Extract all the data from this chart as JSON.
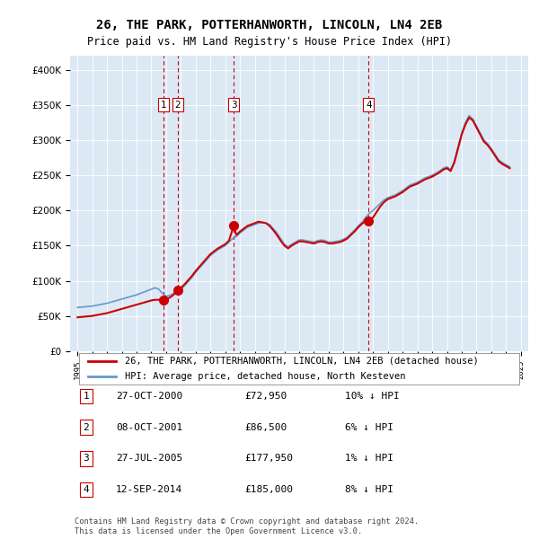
{
  "title": "26, THE PARK, POTTERHANWORTH, LINCOLN, LN4 2EB",
  "subtitle": "Price paid vs. HM Land Registry's House Price Index (HPI)",
  "legend_line1": "26, THE PARK, POTTERHANWORTH, LINCOLN, LN4 2EB (detached house)",
  "legend_line2": "HPI: Average price, detached house, North Kesteven",
  "footnote": "Contains HM Land Registry data © Crown copyright and database right 2024.\nThis data is licensed under the Open Government Licence v3.0.",
  "table": [
    [
      "1",
      "27-OCT-2000",
      "£72,950",
      "10% ↓ HPI"
    ],
    [
      "2",
      "08-OCT-2001",
      "£86,500",
      "6% ↓ HPI"
    ],
    [
      "3",
      "27-JUL-2005",
      "£177,950",
      "1% ↓ HPI"
    ],
    [
      "4",
      "12-SEP-2014",
      "£185,000",
      "8% ↓ HPI"
    ]
  ],
  "sale_dates": [
    2000.82,
    2001.77,
    2005.57,
    2014.7
  ],
  "sale_prices": [
    72950,
    86500,
    177950,
    185000
  ],
  "sale_labels": [
    "1",
    "2",
    "3",
    "4"
  ],
  "vline_dates": [
    2000.82,
    2001.77,
    2005.57,
    2014.7
  ],
  "hpi_color": "#6699cc",
  "price_color": "#cc0000",
  "background_color": "#dce9f5",
  "ylim": [
    0,
    420000
  ],
  "yticks": [
    0,
    50000,
    100000,
    150000,
    200000,
    250000,
    300000,
    350000,
    400000
  ],
  "xlim": [
    1994.5,
    2025.5
  ],
  "xticks": [
    1995,
    1996,
    1997,
    1998,
    1999,
    2000,
    2001,
    2002,
    2003,
    2004,
    2005,
    2006,
    2007,
    2008,
    2009,
    2010,
    2011,
    2012,
    2013,
    2014,
    2015,
    2016,
    2017,
    2018,
    2019,
    2020,
    2021,
    2022,
    2023,
    2024,
    2025
  ],
  "hpi_x": [
    1995.0,
    1995.25,
    1995.5,
    1995.75,
    1996.0,
    1996.25,
    1996.5,
    1996.75,
    1997.0,
    1997.25,
    1997.5,
    1997.75,
    1998.0,
    1998.25,
    1998.5,
    1998.75,
    1999.0,
    1999.25,
    1999.5,
    1999.75,
    2000.0,
    2000.25,
    2000.5,
    2000.75,
    2001.0,
    2001.25,
    2001.5,
    2001.75,
    2002.0,
    2002.25,
    2002.5,
    2002.75,
    2003.0,
    2003.25,
    2003.5,
    2003.75,
    2004.0,
    2004.25,
    2004.5,
    2004.75,
    2005.0,
    2005.25,
    2005.5,
    2005.75,
    2006.0,
    2006.25,
    2006.5,
    2006.75,
    2007.0,
    2007.25,
    2007.5,
    2007.75,
    2008.0,
    2008.25,
    2008.5,
    2008.75,
    2009.0,
    2009.25,
    2009.5,
    2009.75,
    2010.0,
    2010.25,
    2010.5,
    2010.75,
    2011.0,
    2011.25,
    2011.5,
    2011.75,
    2012.0,
    2012.25,
    2012.5,
    2012.75,
    2013.0,
    2013.25,
    2013.5,
    2013.75,
    2014.0,
    2014.25,
    2014.5,
    2014.75,
    2015.0,
    2015.25,
    2015.5,
    2015.75,
    2016.0,
    2016.25,
    2016.5,
    2016.75,
    2017.0,
    2017.25,
    2017.5,
    2017.75,
    2018.0,
    2018.25,
    2018.5,
    2018.75,
    2019.0,
    2019.25,
    2019.5,
    2019.75,
    2020.0,
    2020.25,
    2020.5,
    2020.75,
    2021.0,
    2021.25,
    2021.5,
    2021.75,
    2022.0,
    2022.25,
    2022.5,
    2022.75,
    2023.0,
    2023.25,
    2023.5,
    2023.75,
    2024.0,
    2024.25
  ],
  "hpi_y": [
    62000,
    62500,
    63000,
    63500,
    64000,
    65000,
    66000,
    67000,
    68000,
    69500,
    71000,
    72500,
    74000,
    75500,
    77000,
    78500,
    80000,
    82000,
    84000,
    86000,
    88000,
    90000,
    88000,
    82000,
    78000,
    79000,
    82000,
    84000,
    88000,
    93000,
    99000,
    105000,
    112000,
    118000,
    124000,
    130000,
    136000,
    140000,
    144000,
    147000,
    150000,
    155000,
    160000,
    163000,
    168000,
    172000,
    176000,
    178000,
    180000,
    182000,
    183000,
    182000,
    180000,
    174000,
    168000,
    160000,
    152000,
    148000,
    152000,
    155000,
    158000,
    158000,
    157000,
    156000,
    155000,
    157000,
    158000,
    157000,
    155000,
    155000,
    156000,
    157000,
    159000,
    162000,
    167000,
    172000,
    178000,
    183000,
    190000,
    196000,
    200000,
    205000,
    210000,
    215000,
    218000,
    220000,
    222000,
    225000,
    228000,
    232000,
    236000,
    238000,
    240000,
    243000,
    246000,
    248000,
    250000,
    253000,
    256000,
    260000,
    262000,
    258000,
    270000,
    290000,
    310000,
    325000,
    335000,
    330000,
    320000,
    310000,
    300000,
    295000,
    288000,
    280000,
    272000,
    268000,
    265000,
    262000
  ],
  "price_x": [
    1995.0,
    1995.25,
    1995.5,
    1995.75,
    1996.0,
    1996.25,
    1996.5,
    1996.75,
    1997.0,
    1997.25,
    1997.5,
    1997.75,
    1998.0,
    1998.25,
    1998.5,
    1998.75,
    1999.0,
    1999.25,
    1999.5,
    1999.75,
    2000.0,
    2000.25,
    2000.5,
    2000.82,
    2001.0,
    2001.25,
    2001.5,
    2001.77,
    2002.0,
    2002.25,
    2002.5,
    2002.75,
    2003.0,
    2003.25,
    2003.5,
    2003.75,
    2004.0,
    2004.25,
    2004.5,
    2004.75,
    2005.0,
    2005.25,
    2005.57,
    2005.75,
    2006.0,
    2006.25,
    2006.5,
    2006.75,
    2007.0,
    2007.25,
    2007.5,
    2007.75,
    2008.0,
    2008.25,
    2008.5,
    2008.75,
    2009.0,
    2009.25,
    2009.5,
    2009.75,
    2010.0,
    2010.25,
    2010.5,
    2010.75,
    2011.0,
    2011.25,
    2011.5,
    2011.75,
    2012.0,
    2012.25,
    2012.5,
    2012.75,
    2013.0,
    2013.25,
    2013.5,
    2013.75,
    2014.0,
    2014.25,
    2014.5,
    2014.7,
    2015.0,
    2015.25,
    2015.5,
    2015.75,
    2016.0,
    2016.25,
    2016.5,
    2016.75,
    2017.0,
    2017.25,
    2017.5,
    2017.75,
    2018.0,
    2018.25,
    2018.5,
    2018.75,
    2019.0,
    2019.25,
    2019.5,
    2019.75,
    2020.0,
    2020.25,
    2020.5,
    2020.75,
    2021.0,
    2021.25,
    2021.5,
    2021.75,
    2022.0,
    2022.25,
    2022.5,
    2022.75,
    2023.0,
    2023.25,
    2023.5,
    2023.75,
    2024.0,
    2024.25
  ],
  "price_y": [
    48000,
    48500,
    49000,
    49500,
    50000,
    51000,
    52000,
    53000,
    54000,
    55500,
    57000,
    58500,
    60000,
    61500,
    63000,
    64500,
    66000,
    67500,
    69000,
    70500,
    72000,
    72950,
    72950,
    72950,
    74000,
    76000,
    80000,
    86500,
    90000,
    95000,
    101000,
    107000,
    114000,
    120000,
    126000,
    132000,
    138000,
    142000,
    146000,
    149000,
    152000,
    157000,
    177950,
    165000,
    170000,
    174000,
    178000,
    180000,
    182000,
    184000,
    183000,
    182000,
    178000,
    172000,
    165000,
    157000,
    150000,
    146000,
    150000,
    153000,
    156000,
    156000,
    155000,
    154000,
    153000,
    155000,
    156000,
    155000,
    153000,
    153000,
    154000,
    155000,
    157000,
    160000,
    165000,
    170000,
    176000,
    181000,
    185000,
    185000,
    190000,
    198000,
    206000,
    212000,
    216000,
    218000,
    220000,
    223000,
    226000,
    230000,
    234000,
    236000,
    238000,
    241000,
    244000,
    246000,
    248000,
    251000,
    254000,
    258000,
    260000,
    256000,
    268000,
    288000,
    308000,
    322000,
    332000,
    328000,
    318000,
    308000,
    298000,
    293000,
    286000,
    278000,
    270000,
    266000,
    263000,
    260000
  ]
}
